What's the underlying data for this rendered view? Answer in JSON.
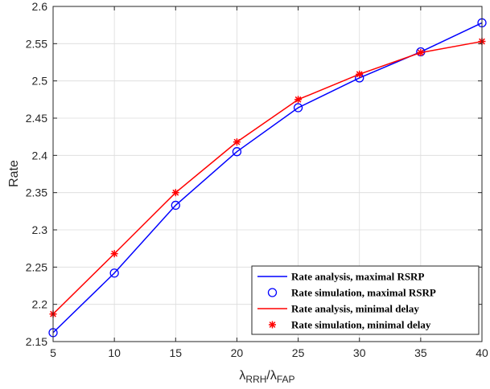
{
  "chart_data": {
    "type": "line",
    "xlabel": {
      "main1": "λ",
      "sub1": "RRH",
      "sep": "/",
      "main2": "λ",
      "sub2": "FAP"
    },
    "ylabel": "Rate",
    "xlim": [
      5,
      40
    ],
    "ylim": [
      2.15,
      2.6
    ],
    "x_ticks": [
      5,
      10,
      15,
      20,
      25,
      30,
      35,
      40
    ],
    "x_tick_labels": [
      "5",
      "10",
      "15",
      "20",
      "25",
      "30",
      "35",
      "40"
    ],
    "y_ticks": [
      2.15,
      2.2,
      2.25,
      2.3,
      2.35,
      2.4,
      2.45,
      2.5,
      2.55,
      2.6
    ],
    "y_tick_labels": [
      "2.15",
      "2.2",
      "2.25",
      "2.3",
      "2.35",
      "2.4",
      "2.45",
      "2.5",
      "2.55",
      "2.6"
    ],
    "grid": true,
    "legend_position": "bottom-right",
    "x": [
      5,
      10,
      15,
      20,
      25,
      30,
      35,
      40
    ],
    "series": [
      {
        "name": "Rate analysis, maximal RSRP",
        "style": "line",
        "color": "#0000ff",
        "values": [
          2.162,
          2.242,
          2.333,
          2.405,
          2.464,
          2.504,
          2.539,
          2.578
        ]
      },
      {
        "name": "Rate simulation, maximal RSRP",
        "style": "circle",
        "color": "#0000ff",
        "values": [
          2.162,
          2.242,
          2.333,
          2.405,
          2.464,
          2.504,
          2.539,
          2.578
        ]
      },
      {
        "name": "Rate analysis, minimal delay",
        "style": "line",
        "color": "#ff0000",
        "values": [
          2.187,
          2.268,
          2.35,
          2.418,
          2.475,
          2.509,
          2.538,
          2.553
        ]
      },
      {
        "name": "Rate simulation, minimal delay",
        "style": "star",
        "color": "#ff0000",
        "values": [
          2.187,
          2.268,
          2.35,
          2.418,
          2.475,
          2.509,
          2.538,
          2.553
        ]
      }
    ]
  }
}
